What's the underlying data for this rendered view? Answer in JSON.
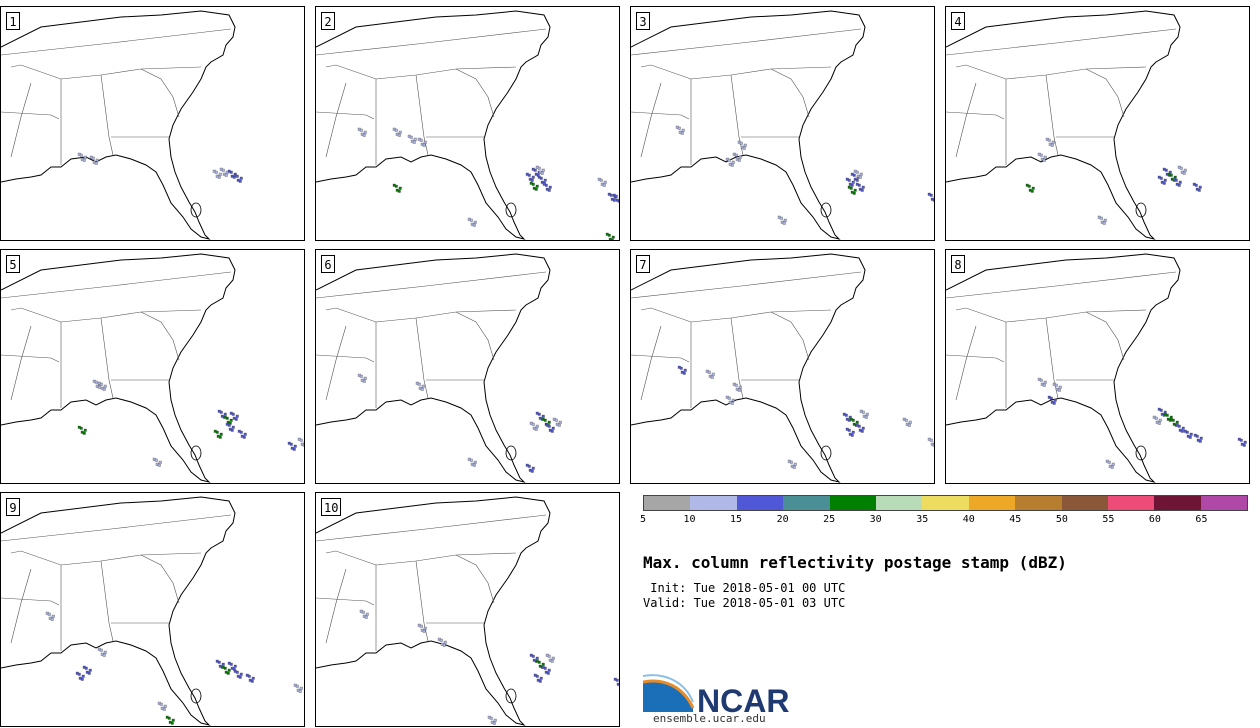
{
  "panels": [
    {
      "label": "1",
      "cells": [
        [
          222,
          170,
          "#b0b8e8"
        ],
        [
          230,
          172,
          "#5058d8"
        ],
        [
          236,
          176,
          "#5058d8"
        ],
        [
          80,
          155,
          "#b0b8e8"
        ],
        [
          92,
          158,
          "#b0b8e8"
        ],
        [
          215,
          172,
          "#b0b8e8"
        ]
      ]
    },
    {
      "label": "2",
      "cells": [
        [
          528,
          175,
          "#5058d8"
        ],
        [
          534,
          170,
          "#5058d8"
        ],
        [
          540,
          178,
          "#5058d8"
        ],
        [
          545,
          185,
          "#5058d8"
        ],
        [
          532,
          184,
          "#008000"
        ],
        [
          538,
          168,
          "#b0b8e8"
        ],
        [
          395,
          186,
          "#008000"
        ],
        [
          360,
          130,
          "#b0b8e8"
        ],
        [
          395,
          130,
          "#b0b8e8"
        ],
        [
          410,
          137,
          "#b0b8e8"
        ],
        [
          420,
          140,
          "#b0b8e8"
        ],
        [
          600,
          180,
          "#b0b8e8"
        ],
        [
          610,
          195,
          "#5058d8"
        ],
        [
          615,
          196,
          "#5058d8"
        ],
        [
          608,
          235,
          "#008000"
        ],
        [
          470,
          220,
          "#b0b8e8"
        ]
      ]
    },
    {
      "label": "3",
      "cells": [
        [
          848,
          180,
          "#5058d8"
        ],
        [
          853,
          175,
          "#5058d8"
        ],
        [
          858,
          185,
          "#5058d8"
        ],
        [
          850,
          188,
          "#008000"
        ],
        [
          856,
          172,
          "#b0b8e8"
        ],
        [
          740,
          143,
          "#b0b8e8"
        ],
        [
          735,
          155,
          "#b0b8e8"
        ],
        [
          728,
          160,
          "#b0b8e8"
        ],
        [
          780,
          218,
          "#b0b8e8"
        ],
        [
          930,
          195,
          "#5058d8"
        ],
        [
          678,
          128,
          "#b0b8e8"
        ]
      ]
    },
    {
      "label": "4",
      "cells": [
        [
          1165,
          170,
          "#5058d8"
        ],
        [
          1170,
          175,
          "#008000"
        ],
        [
          1175,
          180,
          "#5058d8"
        ],
        [
          1160,
          178,
          "#5058d8"
        ],
        [
          1180,
          168,
          "#b0b8e8"
        ],
        [
          1195,
          185,
          "#5058d8"
        ],
        [
          1028,
          186,
          "#008000"
        ],
        [
          1048,
          140,
          "#b0b8e8"
        ],
        [
          1040,
          155,
          "#b0b8e8"
        ],
        [
          1100,
          218,
          "#b0b8e8"
        ]
      ]
    },
    {
      "label": "5",
      "cells": [
        [
          220,
          412,
          "#5058d8"
        ],
        [
          226,
          418,
          "#008000"
        ],
        [
          232,
          414,
          "#5058d8"
        ],
        [
          228,
          425,
          "#5058d8"
        ],
        [
          216,
          432,
          "#008000"
        ],
        [
          240,
          432,
          "#5058d8"
        ],
        [
          80,
          428,
          "#008000"
        ],
        [
          95,
          382,
          "#b0b8e8"
        ],
        [
          100,
          384,
          "#b0b8e8"
        ],
        [
          290,
          444,
          "#5058d8"
        ],
        [
          300,
          440,
          "#b0b8e8"
        ],
        [
          155,
          460,
          "#b0b8e8"
        ]
      ]
    },
    {
      "label": "6",
      "cells": [
        [
          538,
          414,
          "#5058d8"
        ],
        [
          544,
          420,
          "#008000"
        ],
        [
          548,
          426,
          "#5058d8"
        ],
        [
          532,
          424,
          "#b0b8e8"
        ],
        [
          555,
          420,
          "#b0b8e8"
        ],
        [
          360,
          376,
          "#b0b8e8"
        ],
        [
          418,
          384,
          "#b0b8e8"
        ],
        [
          470,
          460,
          "#b0b8e8"
        ],
        [
          528,
          466,
          "#5058d8"
        ]
      ]
    },
    {
      "label": "7",
      "cells": [
        [
          845,
          415,
          "#5058d8"
        ],
        [
          852,
          420,
          "#008000"
        ],
        [
          858,
          426,
          "#5058d8"
        ],
        [
          848,
          430,
          "#5058d8"
        ],
        [
          862,
          412,
          "#b0b8e8"
        ],
        [
          905,
          420,
          "#b0b8e8"
        ],
        [
          930,
          440,
          "#b0b8e8"
        ],
        [
          680,
          368,
          "#5058d8"
        ],
        [
          708,
          372,
          "#b0b8e8"
        ],
        [
          735,
          385,
          "#b0b8e8"
        ],
        [
          728,
          398,
          "#b0b8e8"
        ],
        [
          790,
          462,
          "#b0b8e8"
        ]
      ]
    },
    {
      "label": "8",
      "cells": [
        [
          1160,
          410,
          "#5058d8"
        ],
        [
          1166,
          415,
          "#008000"
        ],
        [
          1172,
          420,
          "#008000"
        ],
        [
          1178,
          426,
          "#5058d8"
        ],
        [
          1186,
          432,
          "#5058d8"
        ],
        [
          1196,
          436,
          "#5058d8"
        ],
        [
          1155,
          418,
          "#b0b8e8"
        ],
        [
          1040,
          380,
          "#b0b8e8"
        ],
        [
          1050,
          398,
          "#5058d8"
        ],
        [
          1055,
          385,
          "#b0b8e8"
        ],
        [
          1240,
          440,
          "#5058d8"
        ],
        [
          1108,
          462,
          "#b0b8e8"
        ]
      ]
    },
    {
      "label": "9",
      "cells": [
        [
          218,
          662,
          "#5058d8"
        ],
        [
          224,
          668,
          "#008000"
        ],
        [
          230,
          664,
          "#5058d8"
        ],
        [
          236,
          672,
          "#5058d8"
        ],
        [
          248,
          676,
          "#5058d8"
        ],
        [
          85,
          668,
          "#5058d8"
        ],
        [
          78,
          674,
          "#5058d8"
        ],
        [
          48,
          614,
          "#b0b8e8"
        ],
        [
          100,
          650,
          "#b0b8e8"
        ],
        [
          168,
          718,
          "#008000"
        ],
        [
          160,
          704,
          "#b0b8e8"
        ],
        [
          296,
          686,
          "#b0b8e8"
        ]
      ]
    },
    {
      "label": "10",
      "cells": [
        [
          532,
          656,
          "#5058d8"
        ],
        [
          538,
          662,
          "#008000"
        ],
        [
          544,
          668,
          "#5058d8"
        ],
        [
          536,
          676,
          "#5058d8"
        ],
        [
          548,
          656,
          "#b0b8e8"
        ],
        [
          362,
          612,
          "#b0b8e8"
        ],
        [
          420,
          626,
          "#b0b8e8"
        ],
        [
          440,
          640,
          "#b0b8e8"
        ],
        [
          490,
          718,
          "#b0b8e8"
        ],
        [
          616,
          680,
          "#5058d8"
        ]
      ]
    }
  ],
  "colorbar": {
    "colors": [
      "#a6a6a6",
      "#b0b8e8",
      "#5058d8",
      "#4a8f96",
      "#008000",
      "#b8dcb8",
      "#ecdc60",
      "#eca826",
      "#b87e30",
      "#8a5838",
      "#ee4c78",
      "#6e1435",
      "#b048a8"
    ],
    "ticks": [
      "5",
      "10",
      "15",
      "20",
      "25",
      "30",
      "35",
      "40",
      "45",
      "50",
      "55",
      "60",
      "65"
    ]
  },
  "title": "Max. column reflectivity postage stamp (dBZ)",
  "init": " Init: Tue 2018-05-01 00 UTC",
  "valid": "Valid: Tue 2018-05-01 03 UTC",
  "logo": {
    "text": "NCAR",
    "url": "ensemble.ucar.edu"
  }
}
